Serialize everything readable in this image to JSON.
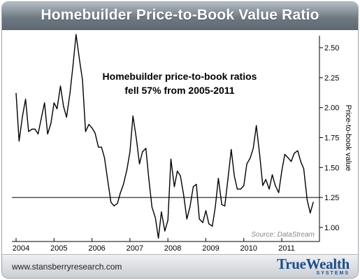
{
  "header": {
    "title": "Homebuilder Price-to-Book Value Ratio"
  },
  "footer": {
    "url": "www.stansberryresearch.com",
    "logo_main": "TrueWealth",
    "logo_sub": "SYSTEMS"
  },
  "colors": {
    "line": "#000000",
    "logo": "#1f4e8a",
    "title_bar": "#6f7a84"
  },
  "chart_data": {
    "type": "line",
    "title": "Homebuilder Price-to-Book Value Ratio",
    "annotation_lines": [
      "Homebuilder price-to-book ratios",
      "fell 57% from 2005-2011"
    ],
    "source": "Source: DataStream",
    "ylabel": "Price-to-book value",
    "xlim": [
      2004.0,
      2011.92
    ],
    "ylim": [
      0.9,
      2.6
    ],
    "x_ticks": [
      2004,
      2005,
      2006,
      2007,
      2008,
      2009,
      2010,
      2011
    ],
    "x_tick_labels": [
      "2004",
      "2005",
      "2006",
      "2007",
      "2008",
      "2009",
      "2010",
      "2011"
    ],
    "y_ticks": [
      1.0,
      1.25,
      1.5,
      1.75,
      2.0,
      2.25,
      2.5
    ],
    "y_tick_labels": [
      "1.00",
      "1.25",
      "1.50",
      "1.75",
      "2.00",
      "2.25",
      "2.50"
    ],
    "reference_line": 1.25,
    "grid": false,
    "series": [
      {
        "x": [
          2004.0,
          2004.08,
          2004.17,
          2004.25,
          2004.33,
          2004.42,
          2004.5,
          2004.58,
          2004.67,
          2004.75,
          2004.83,
          2004.92,
          2005.0,
          2005.08,
          2005.17,
          2005.25,
          2005.33,
          2005.42,
          2005.5,
          2005.58,
          2005.67,
          2005.75,
          2005.83,
          2005.92,
          2006.0,
          2006.08,
          2006.17,
          2006.25,
          2006.33,
          2006.42,
          2006.5,
          2006.58,
          2006.67,
          2006.75,
          2006.83,
          2006.92,
          2007.0,
          2007.08,
          2007.17,
          2007.25,
          2007.33,
          2007.42,
          2007.5,
          2007.58,
          2007.67,
          2007.75,
          2007.83,
          2007.92,
          2008.0,
          2008.08,
          2008.17,
          2008.25,
          2008.33,
          2008.42,
          2008.5,
          2008.58,
          2008.67,
          2008.75,
          2008.83,
          2008.92,
          2009.0,
          2009.08,
          2009.17,
          2009.25,
          2009.33,
          2009.42,
          2009.5,
          2009.58,
          2009.67,
          2009.75,
          2009.83,
          2009.92,
          2010.0,
          2010.08,
          2010.17,
          2010.25,
          2010.33,
          2010.42,
          2010.5,
          2010.58,
          2010.67,
          2010.75,
          2010.83,
          2010.92,
          2011.0,
          2011.08,
          2011.17,
          2011.25,
          2011.33,
          2011.42,
          2011.5,
          2011.58,
          2011.67,
          2011.75,
          2011.83
        ],
        "values": [
          2.12,
          1.72,
          1.93,
          2.07,
          1.8,
          1.82,
          1.82,
          1.78,
          1.92,
          2.04,
          1.78,
          1.87,
          2.04,
          1.99,
          2.18,
          2.01,
          1.92,
          2.12,
          2.35,
          2.61,
          2.4,
          2.23,
          1.8,
          1.86,
          1.83,
          1.79,
          1.67,
          1.67,
          1.58,
          1.38,
          1.21,
          1.18,
          1.2,
          1.29,
          1.36,
          1.48,
          1.63,
          1.93,
          1.74,
          1.53,
          1.63,
          1.66,
          1.4,
          1.17,
          1.08,
          0.91,
          1.13,
          0.97,
          1.06,
          1.57,
          1.34,
          1.47,
          1.43,
          1.26,
          1.07,
          1.17,
          1.34,
          1.36,
          1.07,
          1.04,
          1.14,
          1.03,
          1.01,
          1.17,
          1.41,
          1.19,
          1.18,
          1.4,
          1.65,
          1.43,
          1.32,
          1.32,
          1.35,
          1.53,
          1.58,
          1.66,
          1.85,
          1.6,
          1.35,
          1.4,
          1.32,
          1.44,
          1.35,
          1.29,
          1.47,
          1.61,
          1.58,
          1.55,
          1.62,
          1.64,
          1.55,
          1.49,
          1.23,
          1.12,
          1.21
        ]
      }
    ]
  }
}
